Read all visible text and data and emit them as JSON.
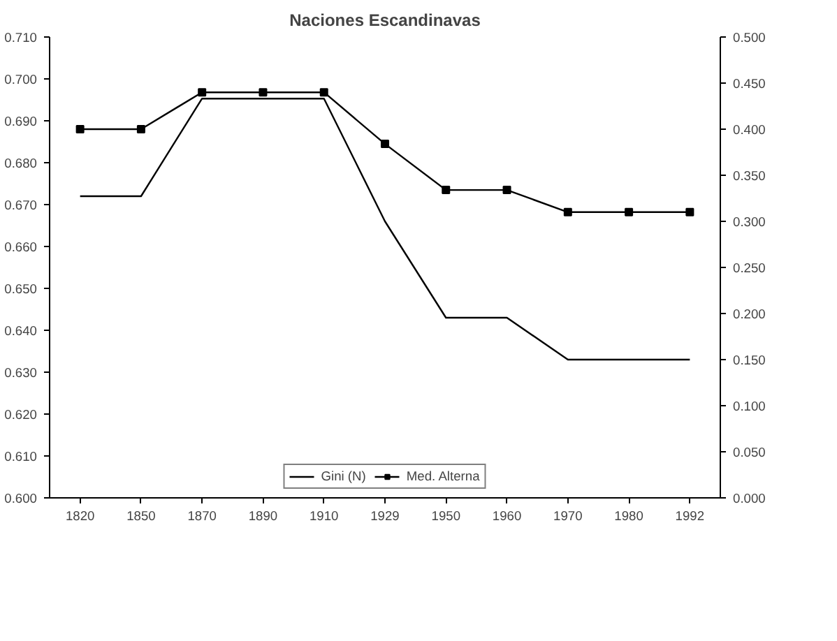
{
  "chart_data": {
    "type": "line",
    "title": "Naciones Escandinavas",
    "categories": [
      "1820",
      "1850",
      "1870",
      "1890",
      "1910",
      "1929",
      "1950",
      "1960",
      "1970",
      "1980",
      "1992"
    ],
    "series": [
      {
        "name": "Gini (N)",
        "color": "#000000",
        "marker": "none",
        "values": [
          0.672,
          0.672,
          0.6953,
          0.6953,
          0.6953,
          0.666,
          0.643,
          0.643,
          0.633,
          0.633,
          0.633
        ]
      },
      {
        "name": "Med. Alterna",
        "color": "#000000",
        "marker": "square",
        "axis": "y2",
        "values": [
          0.4,
          0.4,
          0.44,
          0.44,
          0.44,
          0.384,
          0.334,
          0.334,
          0.31,
          0.31,
          0.31
        ]
      }
    ],
    "ylim": [
      0.6,
      0.71
    ],
    "yticks": [
      {
        "value": 0.6,
        "label": "0.600"
      },
      {
        "value": 0.61,
        "label": "0.610"
      },
      {
        "value": 0.62,
        "label": "0.620"
      },
      {
        "value": 0.63,
        "label": "0.630"
      },
      {
        "value": 0.64,
        "label": "0.640"
      },
      {
        "value": 0.65,
        "label": "0.650"
      },
      {
        "value": 0.66,
        "label": "0.660"
      },
      {
        "value": 0.67,
        "label": "0.670"
      },
      {
        "value": 0.68,
        "label": "0.680"
      },
      {
        "value": 0.69,
        "label": "0.690"
      },
      {
        "value": 0.7,
        "label": "0.700"
      },
      {
        "value": 0.71,
        "label": "0.710"
      }
    ],
    "y2lim": [
      0,
      0.5
    ],
    "y2ticks": [
      {
        "value": 0,
        "label": "0.000"
      },
      {
        "value": 0.05,
        "label": "0.050"
      },
      {
        "value": 0.1,
        "label": "0.100"
      },
      {
        "value": 0.15,
        "label": "0.150"
      },
      {
        "value": 0.2,
        "label": "0.200"
      },
      {
        "value": 0.25,
        "label": "0.250"
      },
      {
        "value": 0.3,
        "label": "0.300"
      },
      {
        "value": 0.35,
        "label": "0.350"
      },
      {
        "value": 0.4,
        "label": "0.400"
      },
      {
        "value": 0.45,
        "label": "0.450"
      },
      {
        "value": 0.5,
        "label": "0.500"
      }
    ],
    "grid": false,
    "legend": "bottom",
    "line_style": "solid"
  }
}
